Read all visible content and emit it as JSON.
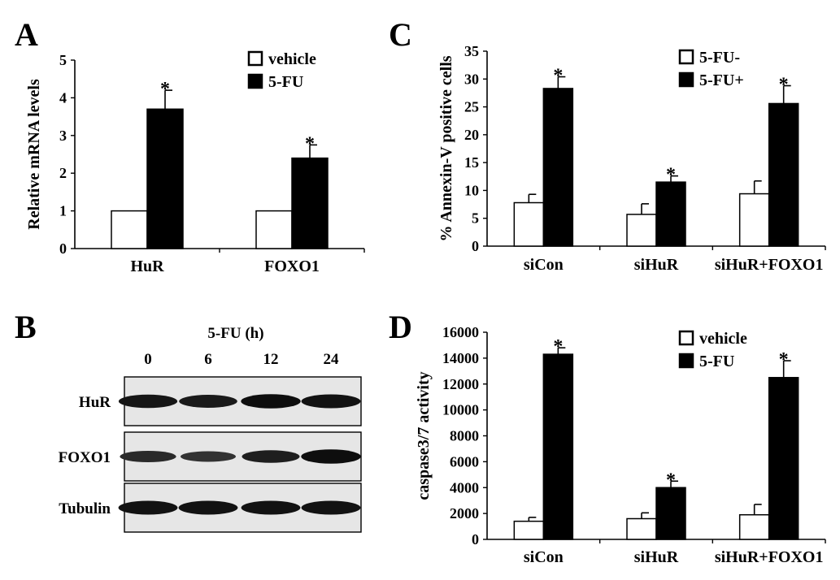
{
  "figure": {
    "panels": {
      "A": "A",
      "B": "B",
      "C": "C",
      "D": "D"
    },
    "blot": {
      "treatment_label": "5-FU (h)",
      "timepoints": [
        "0",
        "6",
        "12",
        "24"
      ],
      "rows": [
        {
          "name": "HuR",
          "intensity": [
            0.85,
            0.8,
            0.95,
            0.9
          ]
        },
        {
          "name": "FOXO1",
          "intensity": [
            0.6,
            0.5,
            0.75,
            0.95
          ]
        },
        {
          "name": "Tubulin",
          "intensity": [
            0.9,
            0.9,
            0.9,
            0.9
          ]
        }
      ]
    }
  },
  "colors": {
    "open_bar": "#ffffff",
    "filled_bar": "#000000",
    "outline": "#000000"
  },
  "chart_data": [
    {
      "panel": "A",
      "type": "bar",
      "categories": [
        "HuR",
        "FOXO1"
      ],
      "series": [
        {
          "name": "vehicle",
          "values": [
            1,
            1
          ],
          "errors": [
            0,
            0
          ],
          "fill": "open"
        },
        {
          "name": "5-FU",
          "values": [
            3.7,
            2.4
          ],
          "errors": [
            0.5,
            0.35
          ],
          "fill": "filled"
        }
      ],
      "significance": [
        "*",
        "*"
      ],
      "ylabel": "Relative mRNA levels",
      "ylim": [
        0,
        5
      ],
      "yticks": [
        0,
        1,
        2,
        3,
        4,
        5
      ],
      "legend_position": "top-right",
      "grid": false
    },
    {
      "panel": "C",
      "type": "bar",
      "categories": [
        "siCon",
        "siHuR",
        "siHuR+FOXO1"
      ],
      "series": [
        {
          "name": "5-FU-",
          "values": [
            7.8,
            5.7,
            9.4
          ],
          "errors": [
            1.5,
            1.9,
            2.3
          ],
          "fill": "open"
        },
        {
          "name": "5-FU+",
          "values": [
            28.3,
            11.5,
            25.6
          ],
          "errors": [
            2.1,
            1.1,
            3.2
          ],
          "fill": "filled"
        }
      ],
      "significance": [
        "*",
        "*",
        "*"
      ],
      "ylabel": "% Annexin-V positive cells",
      "ylim": [
        0,
        35
      ],
      "yticks": [
        0,
        5,
        10,
        15,
        20,
        25,
        30,
        35
      ],
      "legend_position": "top-right",
      "grid": false
    },
    {
      "panel": "D",
      "type": "bar",
      "categories": [
        "siCon",
        "siHuR",
        "siHuR+FOXO1"
      ],
      "series": [
        {
          "name": "vehicle",
          "values": [
            1400,
            1600,
            1900
          ],
          "errors": [
            300,
            450,
            800
          ],
          "fill": "open"
        },
        {
          "name": "5-FU",
          "values": [
            14300,
            4000,
            12500
          ],
          "errors": [
            500,
            500,
            1300
          ],
          "fill": "filled"
        }
      ],
      "significance": [
        "*",
        "*",
        "*"
      ],
      "ylabel": "caspase3/7 activity",
      "ylim": [
        0,
        16000
      ],
      "yticks": [
        0,
        2000,
        4000,
        6000,
        8000,
        10000,
        12000,
        14000,
        16000
      ],
      "legend_position": "top-right",
      "grid": false
    }
  ]
}
